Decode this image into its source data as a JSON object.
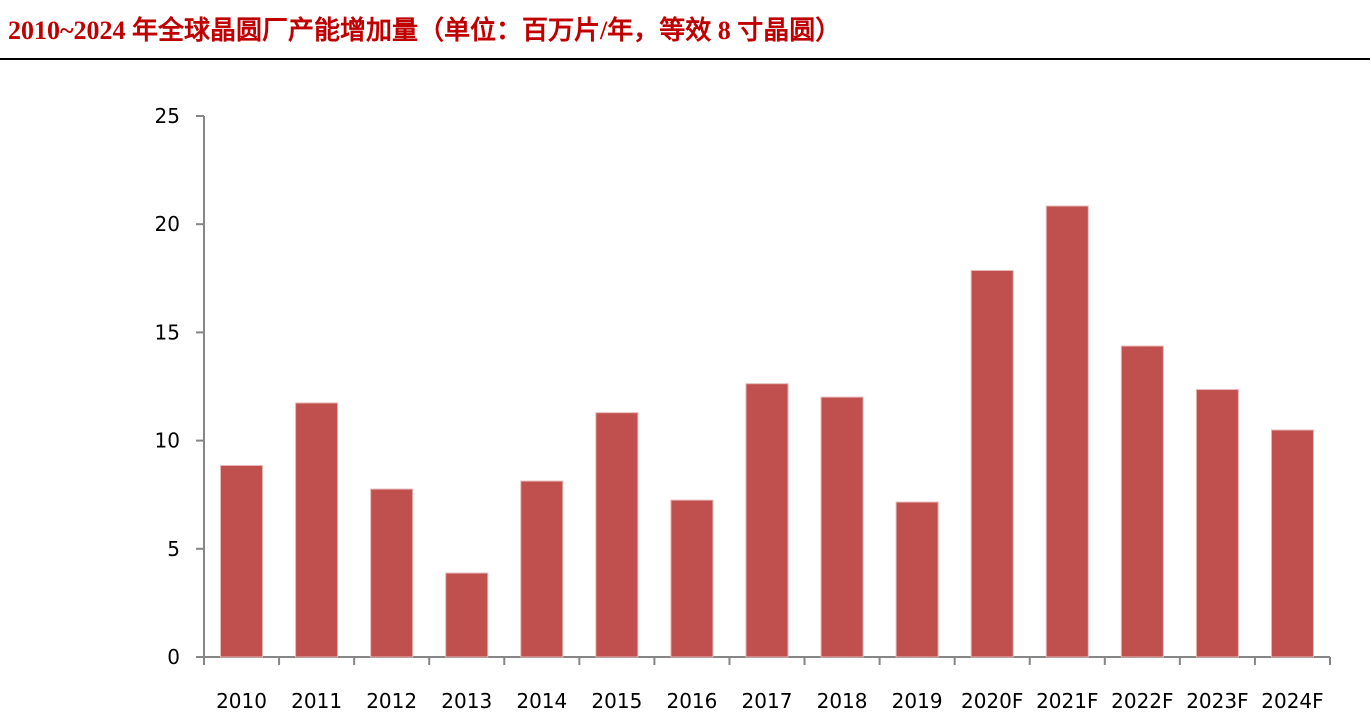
{
  "header": {
    "title": "2010~2024 年全球晶圆厂产能增加量（单位：百万片/年，等效 8 寸晶圆）"
  },
  "colors": {
    "title": "#c00000",
    "bar": "#c0504d",
    "axis": "#868686",
    "rule": "#000000"
  },
  "chart_data": {
    "type": "bar",
    "title": "2010~2024 年全球晶圆厂产能增加量（单位：百万片/年，等效 8 寸晶圆）",
    "xlabel": "",
    "ylabel": "",
    "ylim": [
      0,
      25
    ],
    "yticks": [
      0,
      5,
      10,
      15,
      20,
      25
    ],
    "grid": false,
    "legend": null,
    "categories": [
      "2010",
      "2011",
      "2012",
      "2013",
      "2014",
      "2015",
      "2016",
      "2017",
      "2018",
      "2019",
      "2020F",
      "2021F",
      "2022F",
      "2023F",
      "2024F"
    ],
    "values": [
      8.85,
      11.74,
      7.76,
      3.88,
      8.13,
      11.29,
      7.25,
      12.63,
      12.01,
      7.16,
      17.86,
      20.84,
      14.37,
      12.36,
      10.49
    ],
    "unit": "百万片/年（等效 8 寸晶圆）"
  }
}
